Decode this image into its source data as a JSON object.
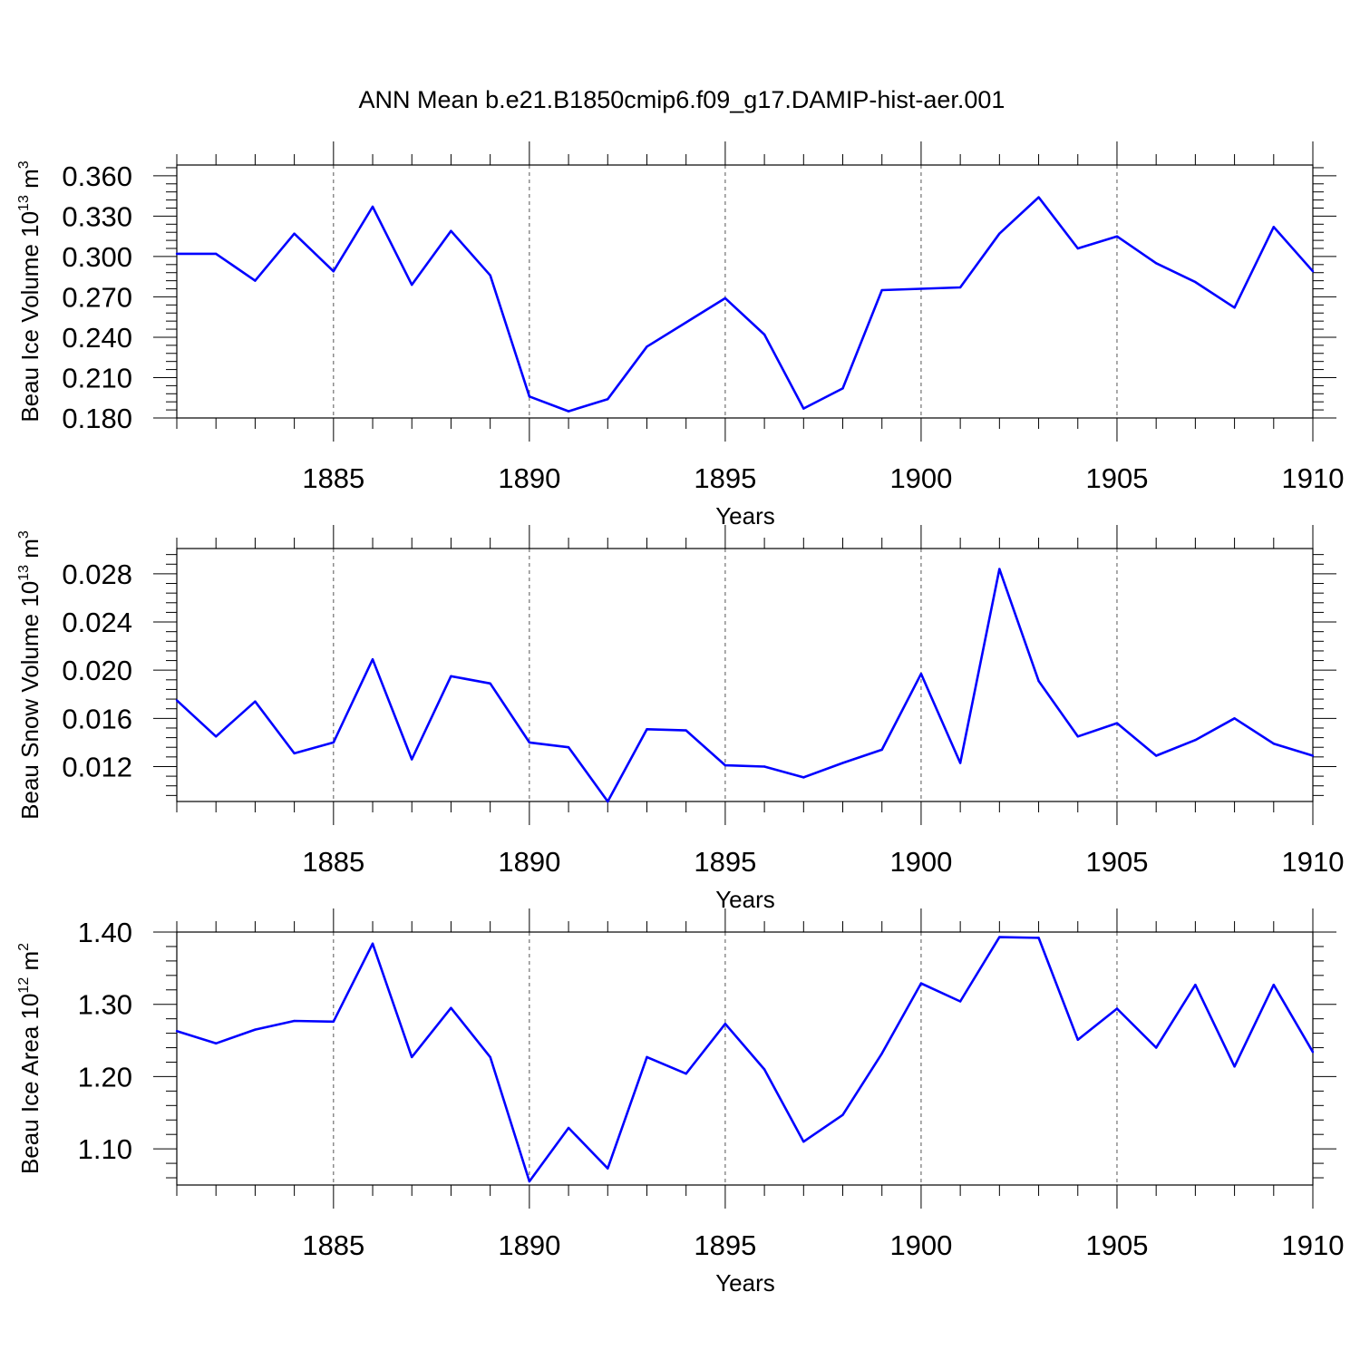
{
  "title": "ANN Mean b.e21.B1850cmip6.f09_g17.DAMIP-hist-aer.001",
  "colors": {
    "line": "#0000ff",
    "axis": "#000000",
    "grid": "#555555"
  },
  "chart_data": [
    {
      "type": "line",
      "name": "ice-volume",
      "ylabel": {
        "main": "Beau Ice Volume 10",
        "sup1": "13",
        "mid": " m",
        "sup2": "3"
      },
      "xlabel": "Years",
      "xlim": [
        1881,
        1910
      ],
      "ylim": [
        0.18,
        0.368
      ],
      "yticks": [
        0.18,
        0.21,
        0.24,
        0.27,
        0.3,
        0.33,
        0.36
      ],
      "ytick_labels": [
        "0.180",
        "0.210",
        "0.240",
        "0.270",
        "0.300",
        "0.330",
        "0.360"
      ],
      "xticks": [
        1885,
        1890,
        1895,
        1900,
        1905,
        1910
      ],
      "xtick_labels": [
        "1885",
        "1890",
        "1895",
        "1900",
        "1905",
        "1910"
      ],
      "x": [
        1881,
        1882,
        1883,
        1884,
        1885,
        1886,
        1887,
        1888,
        1889,
        1890,
        1891,
        1892,
        1893,
        1894,
        1895,
        1896,
        1897,
        1898,
        1899,
        1900,
        1901,
        1902,
        1903,
        1904,
        1905,
        1906,
        1907,
        1908,
        1909,
        1910
      ],
      "values": [
        0.302,
        0.302,
        0.282,
        0.317,
        0.289,
        0.337,
        0.279,
        0.319,
        0.286,
        0.196,
        0.185,
        0.194,
        0.233,
        0.251,
        0.269,
        0.242,
        0.187,
        0.202,
        0.275,
        0.276,
        0.277,
        0.317,
        0.344,
        0.306,
        0.315,
        0.295,
        0.281,
        0.262,
        0.322,
        0.289
      ]
    },
    {
      "type": "line",
      "name": "snow-volume",
      "ylabel": {
        "main": "Beau Snow Volume 10",
        "sup1": "13",
        "mid": " m",
        "sup2": "3"
      },
      "xlabel": "Years",
      "xlim": [
        1881,
        1910
      ],
      "ylim": [
        0.0091,
        0.0301
      ],
      "yticks": [
        0.012,
        0.016,
        0.02,
        0.024,
        0.028
      ],
      "ytick_labels": [
        "0.012",
        "0.016",
        "0.020",
        "0.024",
        "0.028"
      ],
      "xticks": [
        1885,
        1890,
        1895,
        1900,
        1905,
        1910
      ],
      "xtick_labels": [
        "1885",
        "1890",
        "1895",
        "1900",
        "1905",
        "1910"
      ],
      "x": [
        1881,
        1882,
        1883,
        1884,
        1885,
        1886,
        1887,
        1888,
        1889,
        1890,
        1891,
        1892,
        1893,
        1894,
        1895,
        1896,
        1897,
        1898,
        1899,
        1900,
        1901,
        1902,
        1903,
        1904,
        1905,
        1906,
        1907,
        1908,
        1909,
        1910
      ],
      "values": [
        0.0175,
        0.0145,
        0.0174,
        0.0131,
        0.014,
        0.0209,
        0.0126,
        0.0195,
        0.0189,
        0.014,
        0.0136,
        0.0091,
        0.0151,
        0.015,
        0.0121,
        0.012,
        0.0111,
        0.0123,
        0.0134,
        0.0197,
        0.0123,
        0.0284,
        0.0191,
        0.0145,
        0.0156,
        0.0129,
        0.0142,
        0.016,
        0.0139,
        0.0129
      ]
    },
    {
      "type": "line",
      "name": "ice-area",
      "ylabel": {
        "main": "Beau Ice Area 10",
        "sup1": "12",
        "mid": " m",
        "sup2": "2"
      },
      "xlabel": "Years",
      "xlim": [
        1881,
        1910
      ],
      "ylim": [
        1.05,
        1.4
      ],
      "yticks": [
        1.1,
        1.2,
        1.3,
        1.4
      ],
      "ytick_labels": [
        "1.10",
        "1.20",
        "1.30",
        "1.40"
      ],
      "xticks": [
        1885,
        1890,
        1895,
        1900,
        1905,
        1910
      ],
      "xtick_labels": [
        "1885",
        "1890",
        "1895",
        "1900",
        "1905",
        "1910"
      ],
      "x": [
        1881,
        1882,
        1883,
        1884,
        1885,
        1886,
        1887,
        1888,
        1889,
        1890,
        1891,
        1892,
        1893,
        1894,
        1895,
        1896,
        1897,
        1898,
        1899,
        1900,
        1901,
        1902,
        1903,
        1904,
        1905,
        1906,
        1907,
        1908,
        1909,
        1910
      ],
      "values": [
        1.263,
        1.246,
        1.265,
        1.277,
        1.276,
        1.384,
        1.227,
        1.295,
        1.227,
        1.055,
        1.129,
        1.073,
        1.227,
        1.204,
        1.273,
        1.21,
        1.11,
        1.147,
        1.232,
        1.329,
        1.304,
        1.393,
        1.392,
        1.251,
        1.294,
        1.24,
        1.327,
        1.214,
        1.327,
        1.234
      ]
    }
  ]
}
